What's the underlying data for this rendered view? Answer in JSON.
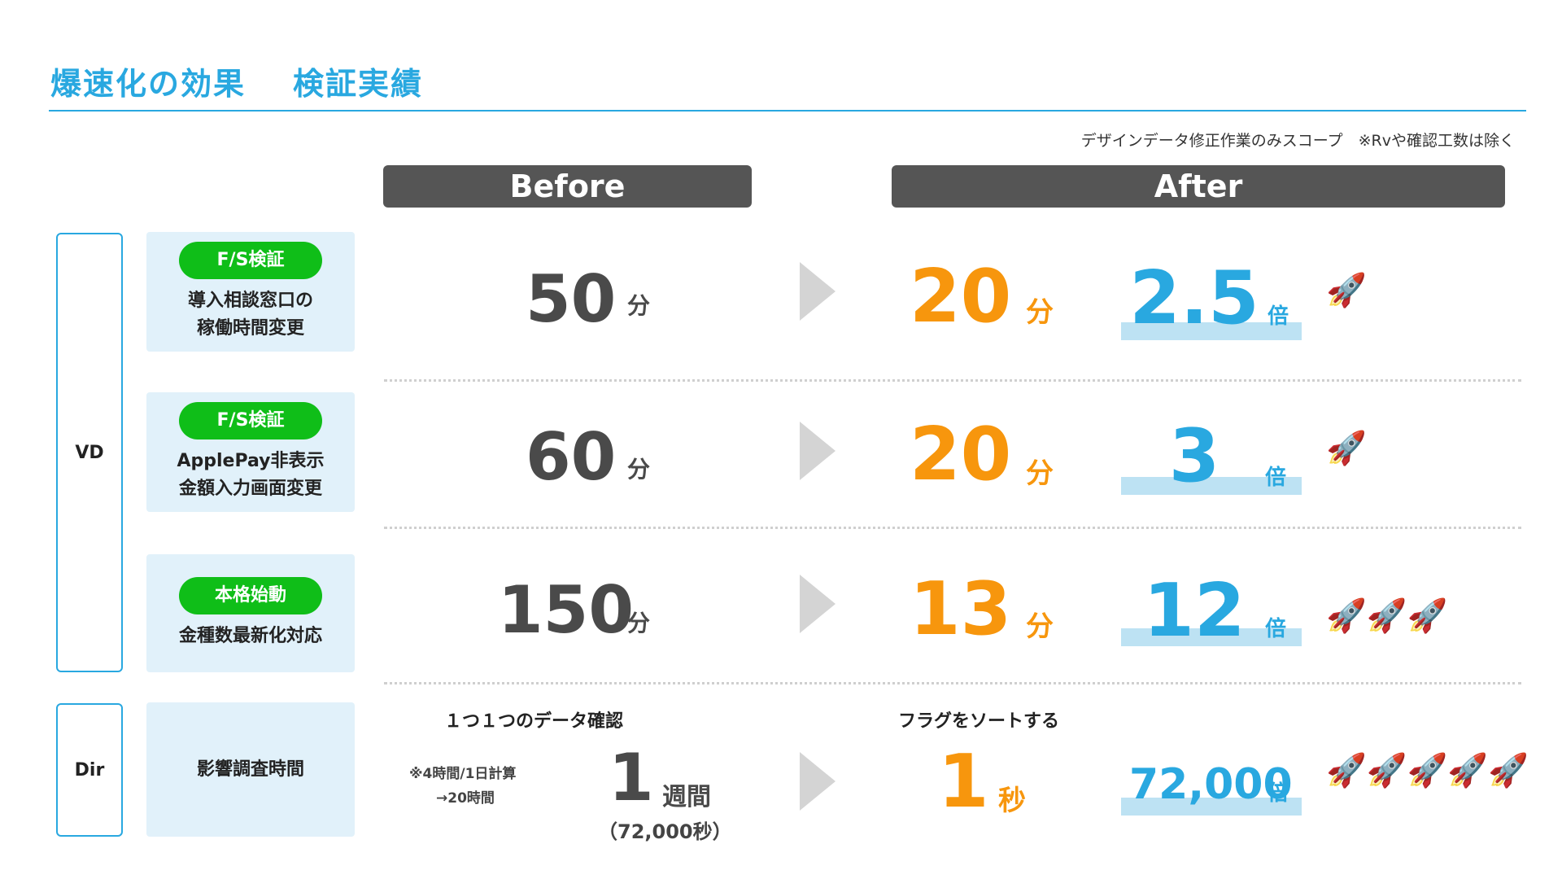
{
  "header": {
    "title_main": "爆速化の効果",
    "title_sub": "検証実績",
    "scope_note": "デザインデータ修正作業のみスコープ　※Rvや確認工数は除く"
  },
  "columns": {
    "before": "Before",
    "after": "After"
  },
  "groups": {
    "vd": "VD",
    "dir": "Dir"
  },
  "rows": [
    {
      "tag": "F/S検証",
      "label": "導入相談窓口の\n稼働時間変更",
      "before_value": "50",
      "before_unit": "分",
      "after_value": "20",
      "after_unit": "分",
      "multiplier": "2.5",
      "multiplier_unit": "倍",
      "rockets": "🚀"
    },
    {
      "tag": "F/S検証",
      "label": "ApplePay非表示\n金額入力画面変更",
      "before_value": "60",
      "before_unit": "分",
      "after_value": "20",
      "after_unit": "分",
      "multiplier": "3",
      "multiplier_unit": "倍",
      "rockets": "🚀"
    },
    {
      "tag": "本格始動",
      "label": "金種数最新化対応",
      "before_value": "150",
      "before_unit": "分",
      "after_value": "13",
      "after_unit": "分",
      "multiplier": "12",
      "multiplier_unit": "倍",
      "rockets": "🚀🚀🚀"
    },
    {
      "label": "影響調査時間",
      "before_heading": "１つ１つのデータ確認",
      "before_note_1": "※4時間/1日計算",
      "before_note_2": "→20時間",
      "before_value": "1",
      "before_unit": "週間",
      "before_paren": "（72,000秒）",
      "after_heading": "フラグをソートする",
      "after_value": "1",
      "after_unit": "秒",
      "multiplier": "72,000",
      "multiplier_unit": "倍",
      "rockets": "🚀🚀🚀🚀🚀"
    }
  ]
}
